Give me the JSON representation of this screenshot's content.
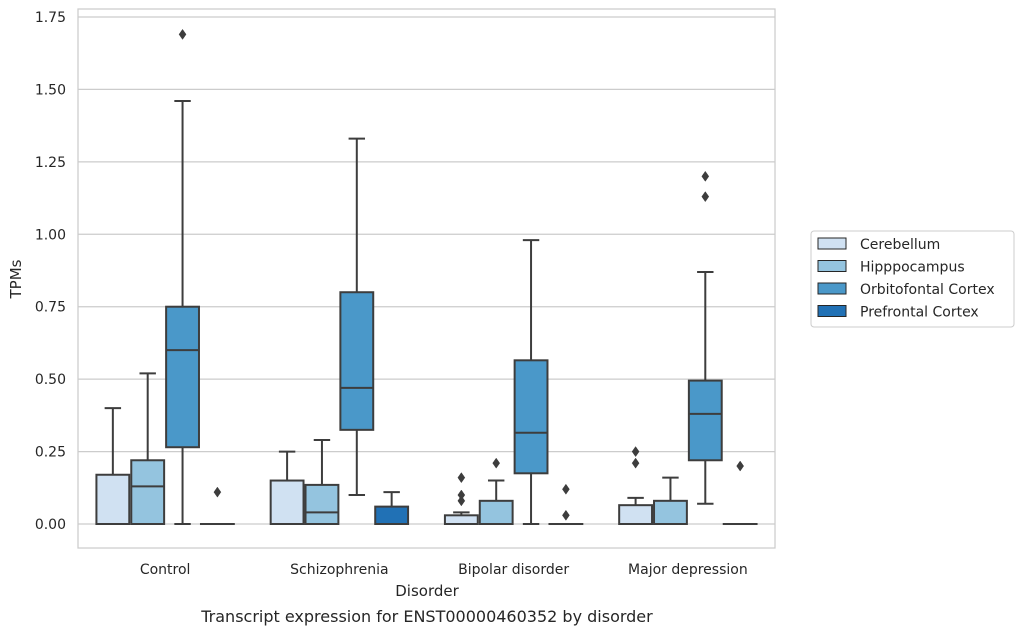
{
  "chart_data": {
    "type": "boxplot",
    "title": "",
    "caption": "Transcript expression for ENST00000460352 by disorder",
    "xlabel": "Disorder",
    "ylabel": "TPMs",
    "ylim": [
      -0.08,
      1.77
    ],
    "yticks": [
      0.0,
      0.25,
      0.5,
      0.75,
      1.0,
      1.25,
      1.5,
      1.75
    ],
    "ytick_labels": [
      "0.00",
      "0.25",
      "0.50",
      "0.75",
      "1.00",
      "1.25",
      "1.50",
      "1.75"
    ],
    "grid": "horizontal",
    "legend_placement": "right",
    "categories": [
      "Control",
      "Schizophrenia",
      "Bipolar disorder",
      "Major depression"
    ],
    "series": [
      {
        "name": "Cerebellum",
        "color": "#d0e1f2",
        "boxes": [
          {
            "whislo": 0.0,
            "q1": 0.0,
            "med": 0.0,
            "q3": 0.17,
            "whishi": 0.4,
            "fliers": []
          },
          {
            "whislo": 0.0,
            "q1": 0.0,
            "med": 0.0,
            "q3": 0.15,
            "whishi": 0.25,
            "fliers": []
          },
          {
            "whislo": 0.0,
            "q1": 0.0,
            "med": 0.0,
            "q3": 0.03,
            "whishi": 0.04,
            "fliers": [
              0.08,
              0.1,
              0.16
            ]
          },
          {
            "whislo": 0.0,
            "q1": 0.0,
            "med": 0.0,
            "q3": 0.065,
            "whishi": 0.09,
            "fliers": [
              0.21,
              0.25
            ]
          }
        ]
      },
      {
        "name": "Hipppocampus",
        "color": "#94c4df",
        "boxes": [
          {
            "whislo": 0.0,
            "q1": 0.0,
            "med": 0.13,
            "q3": 0.22,
            "whishi": 0.52,
            "fliers": []
          },
          {
            "whislo": 0.0,
            "q1": 0.0,
            "med": 0.04,
            "q3": 0.135,
            "whishi": 0.29,
            "fliers": []
          },
          {
            "whislo": 0.0,
            "q1": 0.0,
            "med": 0.0,
            "q3": 0.08,
            "whishi": 0.15,
            "fliers": [
              0.21
            ]
          },
          {
            "whislo": 0.0,
            "q1": 0.0,
            "med": 0.0,
            "q3": 0.08,
            "whishi": 0.16,
            "fliers": []
          }
        ]
      },
      {
        "name": "Orbitofontal Cortex",
        "color": "#4a98c9",
        "boxes": [
          {
            "whislo": 0.0,
            "q1": 0.265,
            "med": 0.6,
            "q3": 0.75,
            "whishi": 1.46,
            "fliers": [
              1.69
            ]
          },
          {
            "whislo": 0.1,
            "q1": 0.325,
            "med": 0.47,
            "q3": 0.8,
            "whishi": 1.33,
            "fliers": []
          },
          {
            "whislo": 0.0,
            "q1": 0.175,
            "med": 0.315,
            "q3": 0.565,
            "whishi": 0.98,
            "fliers": []
          },
          {
            "whislo": 0.07,
            "q1": 0.22,
            "med": 0.38,
            "q3": 0.495,
            "whishi": 0.87,
            "fliers": [
              1.13,
              1.2
            ]
          }
        ]
      },
      {
        "name": "Prefrontal Cortex",
        "color": "#2171b5",
        "boxes": [
          {
            "whislo": 0.0,
            "q1": 0.0,
            "med": 0.0,
            "q3": 0.0,
            "whishi": 0.0,
            "fliers": [
              0.11
            ]
          },
          {
            "whislo": 0.0,
            "q1": 0.0,
            "med": 0.0,
            "q3": 0.06,
            "whishi": 0.11,
            "fliers": []
          },
          {
            "whislo": 0.0,
            "q1": 0.0,
            "med": 0.0,
            "q3": 0.0,
            "whishi": 0.0,
            "fliers": [
              0.03,
              0.12
            ]
          },
          {
            "whislo": 0.0,
            "q1": 0.0,
            "med": 0.0,
            "q3": 0.0,
            "whishi": 0.0,
            "fliers": [
              0.2
            ]
          }
        ]
      }
    ]
  }
}
